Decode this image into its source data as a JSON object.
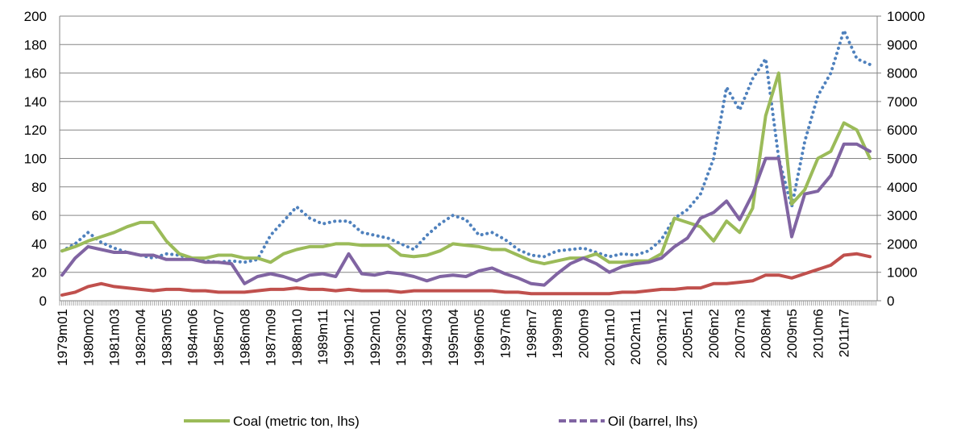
{
  "chart_data": {
    "type": "line",
    "categories": [
      "1979m01",
      null,
      "1980m02",
      null,
      "1981m03",
      null,
      "1982m04",
      null,
      "1983m05",
      null,
      "1984m06",
      null,
      "1985m07",
      null,
      "1986m08",
      null,
      "1987m09",
      null,
      "1988m10",
      null,
      "1989m11",
      null,
      "1990m12",
      null,
      "1992m01",
      null,
      "1993m02",
      null,
      "1994m03",
      null,
      "1995m04",
      null,
      "1996m05",
      null,
      "1997m6",
      null,
      "1998m7",
      null,
      "1999m8",
      null,
      "2000m9",
      null,
      "2001m10",
      null,
      "2002m11",
      null,
      "2003m12",
      null,
      "2005m1",
      null,
      "2006m2",
      null,
      "2007m3",
      null,
      "2008m4",
      null,
      "2009m5",
      null,
      "2010m6",
      null,
      "2011m7",
      null,
      null
    ],
    "series": [
      {
        "color": "#4f81bd",
        "style": "dotted",
        "axis": "y2",
        "values": [
          1750,
          2000,
          2400,
          2050,
          1850,
          1700,
          1600,
          1500,
          1650,
          1600,
          1450,
          1400,
          1350,
          1400,
          1350,
          1450,
          2300,
          2800,
          3300,
          2900,
          2700,
          2800,
          2800,
          2400,
          2300,
          2200,
          2000,
          1800,
          2300,
          2700,
          3000,
          2850,
          2300,
          2400,
          2150,
          1800,
          1600,
          1550,
          1750,
          1800,
          1850,
          1700,
          1550,
          1650,
          1600,
          1750,
          2150,
          2900,
          3200,
          3750,
          5000,
          7500,
          6700,
          7800,
          8500,
          5000,
          3300,
          5600,
          7200,
          8000,
          9500,
          8500,
          8300
        ]
      },
      {
        "color": "#c0504d",
        "values": [
          4,
          6,
          10,
          12,
          10,
          9,
          8,
          7,
          8,
          8,
          7,
          7,
          6,
          6,
          6,
          7,
          8,
          8,
          9,
          8,
          8,
          7,
          8,
          7,
          7,
          7,
          6,
          7,
          7,
          7,
          7,
          7,
          7,
          7,
          6,
          6,
          5,
          5,
          5,
          5,
          5,
          5,
          5,
          6,
          6,
          7,
          8,
          8,
          9,
          9,
          12,
          12,
          13,
          14,
          18,
          18,
          16,
          19,
          22,
          25,
          32,
          33,
          31
        ]
      },
      {
        "name": "Coal (metric ton, lhs)",
        "color": "#9bbb59",
        "legend_style": "solid",
        "values": [
          35,
          38,
          42,
          45,
          48,
          52,
          55,
          55,
          42,
          33,
          30,
          30,
          32,
          32,
          30,
          30,
          27,
          33,
          36,
          38,
          38,
          40,
          40,
          39,
          39,
          39,
          32,
          31,
          32,
          35,
          40,
          39,
          38,
          36,
          36,
          32,
          28,
          26,
          28,
          30,
          30,
          33,
          27,
          27,
          28,
          28,
          33,
          58,
          55,
          52,
          42,
          56,
          48,
          65,
          130,
          160,
          68,
          78,
          100,
          105,
          125,
          120,
          100
        ]
      },
      {
        "name": "Oil (barrel, lhs)",
        "color": "#8064a2",
        "legend_style": "dashed",
        "values": [
          18,
          30,
          38,
          36,
          34,
          34,
          32,
          32,
          29,
          29,
          29,
          27,
          27,
          26,
          12,
          17,
          19,
          17,
          14,
          18,
          19,
          17,
          33,
          19,
          18,
          20,
          19,
          17,
          14,
          17,
          18,
          17,
          21,
          23,
          19,
          16,
          12,
          11,
          19,
          26,
          30,
          26,
          20,
          24,
          26,
          27,
          30,
          38,
          44,
          58,
          62,
          70,
          57,
          75,
          100,
          100,
          45,
          75,
          77,
          88,
          110,
          110,
          105
        ]
      }
    ],
    "ylim": [
      0,
      200
    ],
    "yticks": [
      0,
      20,
      40,
      60,
      80,
      100,
      120,
      140,
      160,
      180,
      200
    ],
    "y2lim": [
      0,
      10000
    ],
    "y2ticks": [
      0,
      1000,
      2000,
      3000,
      4000,
      5000,
      6000,
      7000,
      8000,
      9000,
      10000
    ],
    "grid": true,
    "legend": "bottom"
  }
}
